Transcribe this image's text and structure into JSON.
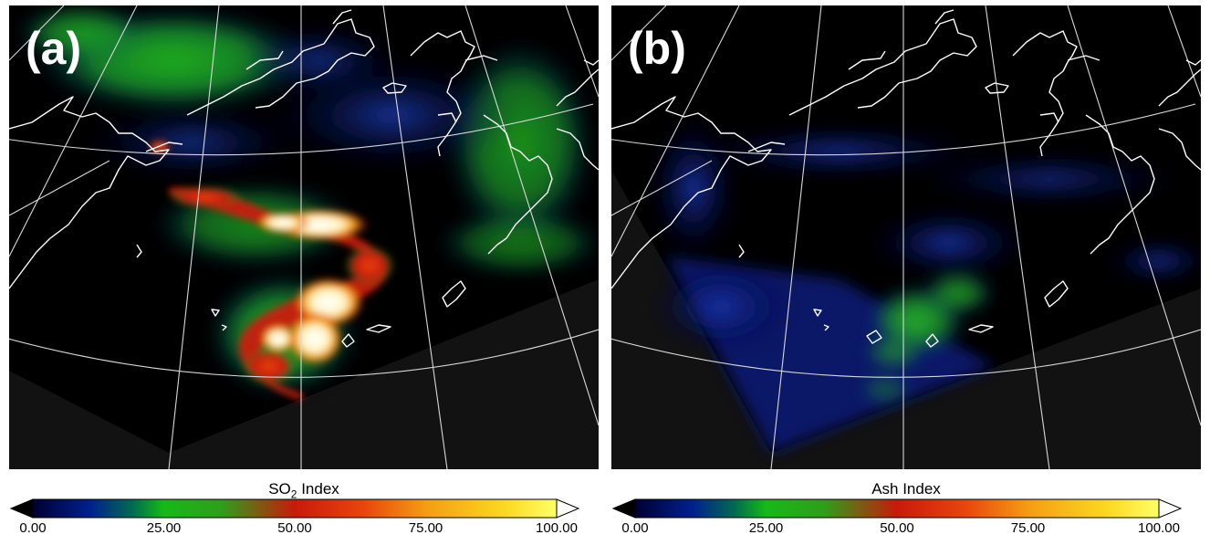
{
  "panels": [
    {
      "label": "(a)",
      "colorbar": {
        "title": "SO",
        "title_sub": "2",
        "title_suffix": " Index",
        "ticks": [
          "0.00",
          "25.00",
          "50.00",
          "75.00",
          "100.00"
        ],
        "range": [
          0,
          100
        ]
      }
    },
    {
      "label": "(b)",
      "colorbar": {
        "title": "Ash Index",
        "ticks": [
          "0.00",
          "25.00",
          "50.00",
          "75.00",
          "100.00"
        ],
        "range": [
          0,
          100
        ]
      }
    }
  ],
  "colors": {
    "background_outside": "#121212",
    "swath": "#000000",
    "coastline": "#ffffff",
    "graticule": "#d8d8d8",
    "colormap": [
      "#000033",
      "#00208f",
      "#006b50",
      "#17b917",
      "#2f9e1a",
      "#c81a0a",
      "#e8450c",
      "#f59c14",
      "#fcd820",
      "#ffff66"
    ]
  }
}
